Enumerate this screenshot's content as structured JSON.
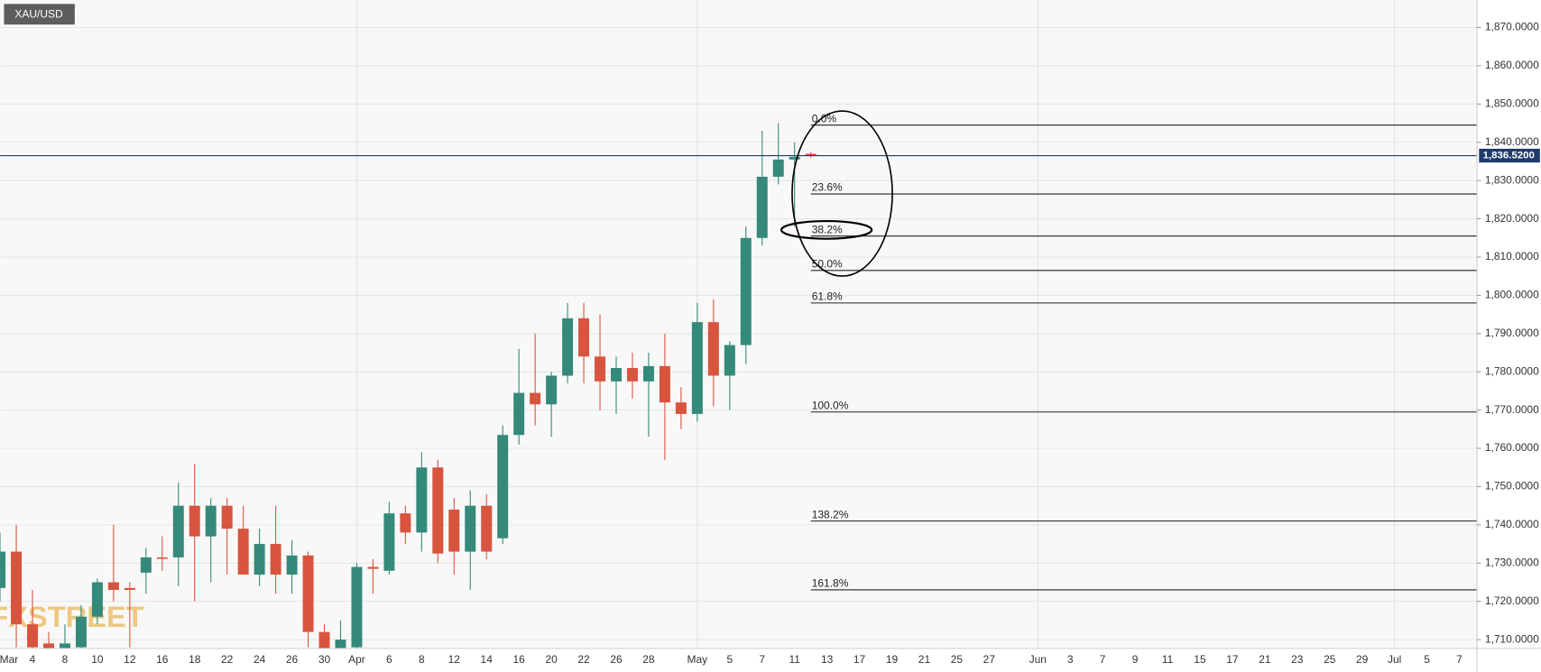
{
  "chart_data": {
    "type": "candlestick",
    "symbol": "XAU/USD",
    "watermark": "FXSTREET",
    "up_color": "#35897a",
    "down_color": "#d8543f",
    "grid": true,
    "ylim": [
      1707.7,
      1877.2
    ],
    "yticks": [
      {
        "value": 1710,
        "label": "1,710.0000"
      },
      {
        "value": 1720,
        "label": "1,720.0000"
      },
      {
        "value": 1730,
        "label": "1,730.0000"
      },
      {
        "value": 1740,
        "label": "1,740.0000"
      },
      {
        "value": 1750,
        "label": "1,750.0000"
      },
      {
        "value": 1760,
        "label": "1,760.0000"
      },
      {
        "value": 1770,
        "label": "1,770.0000"
      },
      {
        "value": 1780,
        "label": "1,780.0000"
      },
      {
        "value": 1790,
        "label": "1,790.0000"
      },
      {
        "value": 1800,
        "label": "1,800.0000"
      },
      {
        "value": 1810,
        "label": "1,810.0000"
      },
      {
        "value": 1820,
        "label": "1,820.0000"
      },
      {
        "value": 1830,
        "label": "1,830.0000"
      },
      {
        "value": 1840,
        "label": "1,840.0000"
      },
      {
        "value": 1850,
        "label": "1,850.0000"
      },
      {
        "value": 1860,
        "label": "1,860.0000"
      },
      {
        "value": 1870,
        "label": "1,870.0000"
      }
    ],
    "categories": [
      "Mar",
      null,
      "4",
      null,
      "8",
      null,
      "10",
      null,
      "12",
      null,
      "16",
      null,
      "18",
      null,
      "22",
      null,
      "24",
      null,
      "26",
      null,
      "30",
      null,
      "Apr",
      null,
      "6",
      null,
      "8",
      null,
      "12",
      null,
      "14",
      null,
      "16",
      null,
      "20",
      null,
      "22",
      null,
      "26",
      null,
      "28",
      null,
      null,
      "May",
      null,
      "5",
      null,
      "7",
      null,
      "11",
      null,
      "13",
      null,
      "17",
      null,
      "19",
      null,
      "21",
      null,
      "25",
      null,
      "27",
      null,
      null,
      "Jun",
      null,
      "3",
      null,
      "7",
      null,
      "9",
      null,
      "11",
      null,
      "15",
      null,
      "17",
      null,
      "21",
      null,
      "23",
      null,
      "25",
      null,
      "29",
      null,
      "Jul",
      null,
      "5",
      null,
      "7"
    ],
    "open": [
      1723.5,
      1733,
      1714,
      1709,
      1705,
      1708,
      1716,
      1725,
      1723.5,
      1727.5,
      1731.5,
      1731.5,
      1745,
      1737,
      1745,
      1739,
      1727,
      1735,
      1727,
      1732,
      1712,
      1705,
      1708,
      1729,
      1728,
      1743,
      1738,
      1755,
      1744,
      1733,
      1745,
      1736.5,
      1763.5,
      1774.5,
      1771.5,
      1779,
      1794,
      1784,
      1777.5,
      1781,
      1777.5,
      1781.5,
      1772,
      1769,
      1793,
      1779,
      1787,
      1815,
      1831,
      1835.5,
      1837,
      null,
      null,
      null,
      null,
      null,
      null,
      null,
      null,
      null,
      null,
      null,
      null,
      null,
      null,
      null,
      null,
      null,
      null,
      null,
      null,
      null,
      null,
      null,
      null,
      null,
      null,
      null,
      null,
      null,
      null,
      null,
      null,
      null,
      null,
      null,
      null,
      null,
      null,
      null,
      null
    ],
    "high": [
      1738,
      1740,
      1723,
      1712,
      1714,
      1719,
      1726,
      1740,
      1725,
      1734,
      1737,
      1751,
      1756,
      1747,
      1747,
      1745,
      1739,
      1745,
      1736,
      1733,
      1714,
      1715,
      1730,
      1731,
      1746,
      1745,
      1759,
      1757,
      1747,
      1749,
      1748,
      1766,
      1786,
      1790,
      1780,
      1798,
      1798,
      1795,
      1784,
      1785,
      1785,
      1790,
      1776,
      1798,
      1799,
      1788,
      1818,
      1843,
      1845,
      1840,
      1837.5,
      null,
      null,
      null,
      null,
      null,
      null,
      null,
      null,
      null,
      null,
      null,
      null,
      null,
      null,
      null,
      null,
      null,
      null,
      null,
      null,
      null,
      null,
      null,
      null,
      null,
      null,
      null,
      null,
      null,
      null,
      null,
      null,
      null,
      null,
      null,
      null,
      null,
      null,
      null,
      null
    ],
    "low": [
      1720,
      1708,
      1706,
      1700,
      1700,
      1704,
      1714,
      1720,
      1708,
      1722,
      1728,
      1724,
      1720,
      1725,
      1727,
      1727,
      1724,
      1722,
      1722,
      1708,
      1705,
      1700,
      1705,
      1722,
      1727,
      1735,
      1733,
      1730,
      1727,
      1723,
      1731,
      1735,
      1761,
      1766,
      1763,
      1777,
      1777,
      1770,
      1769,
      1773,
      1763,
      1757,
      1765,
      1767,
      1771,
      1770,
      1782,
      1813,
      1829,
      1818,
      1836,
      null,
      null,
      null,
      null,
      null,
      null,
      null,
      null,
      null,
      null,
      null,
      null,
      null,
      null,
      null,
      null,
      null,
      null,
      null,
      null,
      null,
      null,
      null,
      null,
      null,
      null,
      null,
      null,
      null,
      null,
      null,
      null,
      null,
      null,
      null,
      null,
      null,
      null,
      null,
      null
    ],
    "close": [
      1733,
      1714,
      1708,
      1704,
      1709,
      1716,
      1725,
      1723,
      1723,
      1731.5,
      1731.3,
      1745,
      1737,
      1745,
      1739,
      1727,
      1735,
      1727,
      1732,
      1712,
      1707,
      1710,
      1729,
      1728.5,
      1743,
      1738,
      1755,
      1732.5,
      1733,
      1745,
      1733,
      1763.5,
      1774.5,
      1771.5,
      1779,
      1794,
      1784,
      1777.5,
      1781,
      1777.5,
      1781.5,
      1772,
      1769,
      1793,
      1779,
      1787,
      1815,
      1831,
      1835.5,
      1836.2,
      1836.5,
      null,
      null,
      null,
      null,
      null,
      null,
      null,
      null,
      null,
      null,
      null,
      null,
      null,
      null,
      null,
      null,
      null,
      null,
      null,
      null,
      null,
      null,
      null,
      null,
      null,
      null,
      null,
      null,
      null,
      null,
      null,
      null,
      null,
      null,
      null,
      null,
      null,
      null,
      null,
      null
    ],
    "last_price": 1836.52,
    "last_price_label": "1,836.5200",
    "last_price_color": "#1f3a6b",
    "fibonacci": {
      "color": "#222222",
      "levels": [
        1844.5,
        1826.5,
        1815.5,
        1806.5,
        1798,
        1769.5,
        1741,
        1723
      ],
      "level_labels": [
        "0.0%",
        "23.6%",
        "38.2%",
        "50.0%",
        "61.8%",
        "100.0%",
        "138.2%",
        "161.8%"
      ]
    }
  }
}
